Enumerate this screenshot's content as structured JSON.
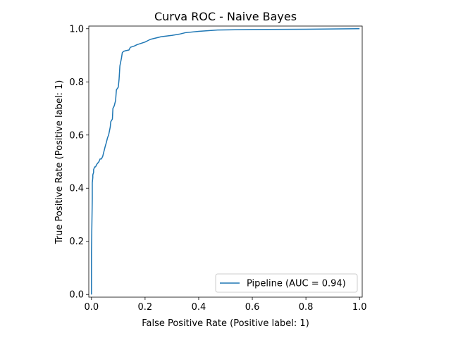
{
  "chart_data": {
    "type": "line",
    "title": "Curva ROC - Naive Bayes",
    "xlabel": "False Positive Rate (Positive label: 1)",
    "ylabel": "True Positive Rate (Positive label: 1)",
    "xlim": [
      -0.01,
      1.01
    ],
    "ylim": [
      -0.01,
      1.01
    ],
    "xticks": [
      0.0,
      0.2,
      0.4,
      0.6,
      0.8,
      1.0
    ],
    "yticks": [
      0.0,
      0.2,
      0.4,
      0.6,
      0.8,
      1.0
    ],
    "xtick_labels": [
      "0.0",
      "0.2",
      "0.4",
      "0.6",
      "0.8",
      "1.0"
    ],
    "ytick_labels": [
      "0.0",
      "0.2",
      "0.4",
      "0.6",
      "0.8",
      "1.0"
    ],
    "grid": false,
    "legend_position": "lower-right",
    "series": [
      {
        "name": "Pipeline (AUC = 0.94)",
        "color": "#1f77b4",
        "x": [
          0.0,
          0.0,
          0.003,
          0.003,
          0.005,
          0.005,
          0.008,
          0.008,
          0.012,
          0.015,
          0.02,
          0.028,
          0.032,
          0.037,
          0.042,
          0.052,
          0.055,
          0.06,
          0.064,
          0.07,
          0.072,
          0.078,
          0.08,
          0.085,
          0.09,
          0.093,
          0.1,
          0.103,
          0.106,
          0.11,
          0.112,
          0.115,
          0.12,
          0.13,
          0.14,
          0.145,
          0.16,
          0.17,
          0.2,
          0.21,
          0.22,
          0.26,
          0.3,
          0.33,
          0.35,
          0.4,
          0.47,
          0.6,
          0.8,
          1.0
        ],
        "y": [
          0.0,
          0.16,
          0.36,
          0.42,
          0.44,
          0.45,
          0.46,
          0.47,
          0.48,
          0.48,
          0.49,
          0.5,
          0.51,
          0.51,
          0.52,
          0.56,
          0.57,
          0.59,
          0.6,
          0.63,
          0.65,
          0.66,
          0.7,
          0.71,
          0.73,
          0.77,
          0.78,
          0.81,
          0.86,
          0.88,
          0.89,
          0.91,
          0.915,
          0.918,
          0.92,
          0.93,
          0.935,
          0.94,
          0.95,
          0.955,
          0.96,
          0.97,
          0.975,
          0.98,
          0.985,
          0.99,
          0.995,
          0.997,
          0.998,
          1.0
        ]
      }
    ]
  }
}
